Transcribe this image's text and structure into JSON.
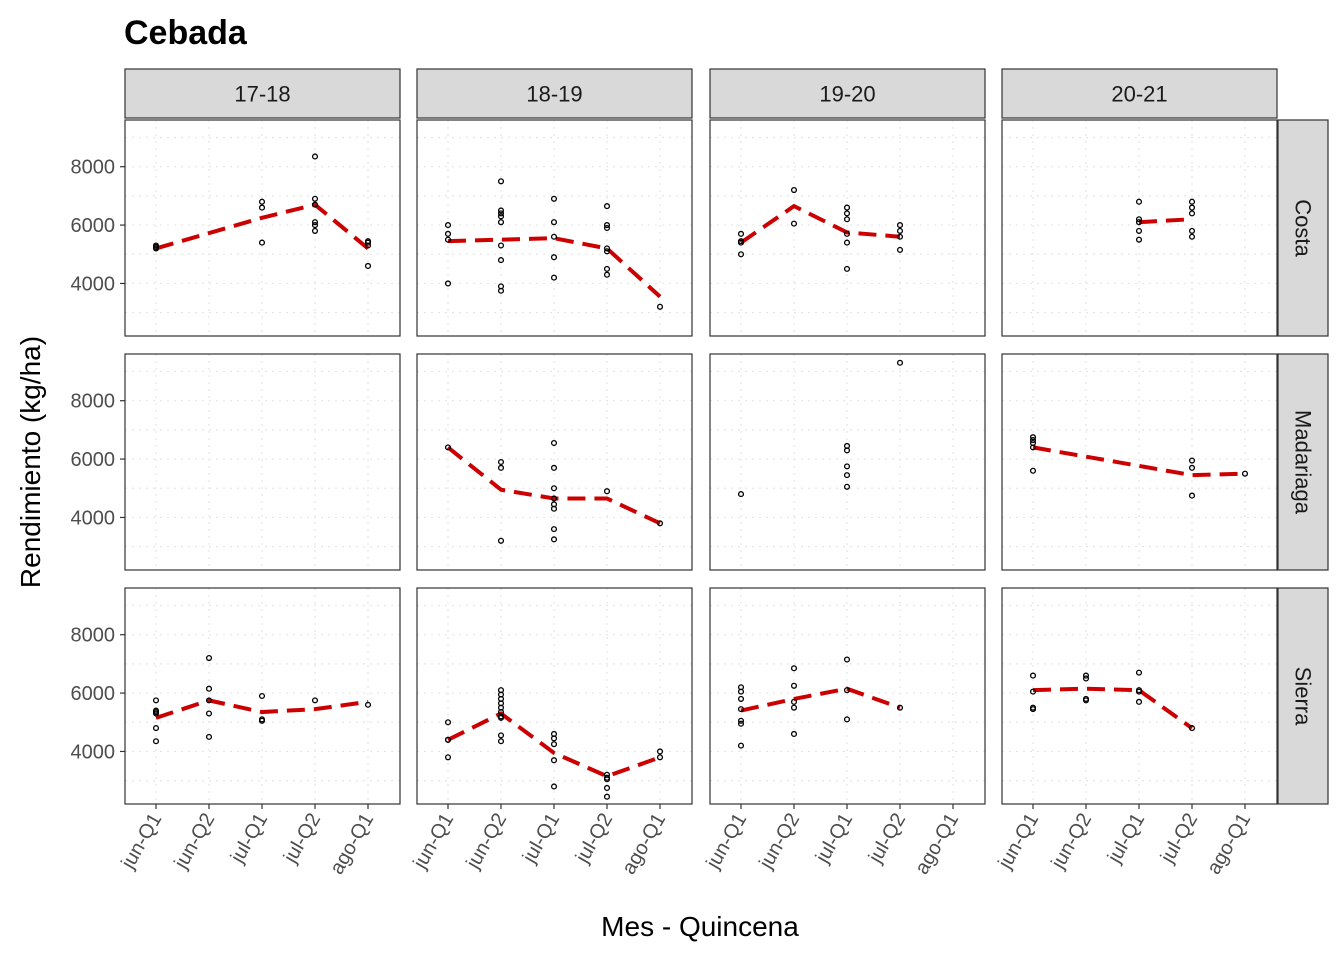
{
  "chart_data": {
    "type": "scatter",
    "title": "Cebada",
    "xlabel": "Mes - Quincena",
    "ylabel": "Rendimiento (kg/ha)",
    "x_categories": [
      "jun-Q1",
      "jun-Q2",
      "jul-Q1",
      "jul-Q2",
      "ago-Q1"
    ],
    "y_ticks": [
      4000,
      6000,
      8000
    ],
    "ylim": [
      2200,
      9600
    ],
    "grid": "dotted",
    "columns": [
      "17-18",
      "18-19",
      "19-20",
      "20-21"
    ],
    "rows": [
      "Costa",
      "Madariaga",
      "Sierra"
    ],
    "mean_line_color": "#cc0000",
    "point_color": "#000000",
    "panels": [
      {
        "row": "Costa",
        "col": "17-18",
        "points": [
          [
            0,
            5200
          ],
          [
            0,
            5250
          ],
          [
            0,
            5300
          ],
          [
            2,
            5400
          ],
          [
            2,
            6600
          ],
          [
            2,
            6800
          ],
          [
            3,
            5800
          ],
          [
            3,
            6000
          ],
          [
            3,
            6100
          ],
          [
            3,
            6700
          ],
          [
            3,
            6900
          ],
          [
            3,
            8350
          ],
          [
            4,
            4600
          ],
          [
            4,
            5300
          ],
          [
            4,
            5400
          ],
          [
            4,
            5450
          ]
        ],
        "line": [
          [
            0,
            5200
          ],
          [
            2,
            6250
          ],
          [
            3,
            6700
          ],
          [
            4,
            5200
          ]
        ]
      },
      {
        "row": "Costa",
        "col": "18-19",
        "points": [
          [
            0,
            4000
          ],
          [
            0,
            5500
          ],
          [
            0,
            5700
          ],
          [
            0,
            6000
          ],
          [
            1,
            3750
          ],
          [
            1,
            3900
          ],
          [
            1,
            4800
          ],
          [
            1,
            5300
          ],
          [
            1,
            6100
          ],
          [
            1,
            6300
          ],
          [
            1,
            6400
          ],
          [
            1,
            6500
          ],
          [
            1,
            7500
          ],
          [
            2,
            4200
          ],
          [
            2,
            4900
          ],
          [
            2,
            5600
          ],
          [
            2,
            6100
          ],
          [
            2,
            6900
          ],
          [
            3,
            4300
          ],
          [
            3,
            4500
          ],
          [
            3,
            5100
          ],
          [
            3,
            5200
          ],
          [
            3,
            5900
          ],
          [
            3,
            6000
          ],
          [
            3,
            6650
          ],
          [
            4,
            3200
          ]
        ],
        "line": [
          [
            0,
            5450
          ],
          [
            1,
            5500
          ],
          [
            2,
            5550
          ],
          [
            3,
            5200
          ],
          [
            4,
            3550
          ]
        ]
      },
      {
        "row": "Costa",
        "col": "19-20",
        "points": [
          [
            0,
            5000
          ],
          [
            0,
            5400
          ],
          [
            0,
            5450
          ],
          [
            0,
            5700
          ],
          [
            1,
            6050
          ],
          [
            1,
            7200
          ],
          [
            2,
            4500
          ],
          [
            2,
            5400
          ],
          [
            2,
            5700
          ],
          [
            2,
            6200
          ],
          [
            2,
            6400
          ],
          [
            2,
            6600
          ],
          [
            3,
            5150
          ],
          [
            3,
            5600
          ],
          [
            3,
            5800
          ],
          [
            3,
            6000
          ]
        ],
        "line": [
          [
            0,
            5400
          ],
          [
            1,
            6650
          ],
          [
            2,
            5750
          ],
          [
            3,
            5600
          ]
        ]
      },
      {
        "row": "Costa",
        "col": "20-21",
        "points": [
          [
            2,
            5500
          ],
          [
            2,
            5800
          ],
          [
            2,
            6100
          ],
          [
            2,
            6200
          ],
          [
            2,
            6800
          ],
          [
            3,
            5600
          ],
          [
            3,
            5800
          ],
          [
            3,
            6400
          ],
          [
            3,
            6600
          ],
          [
            3,
            6800
          ]
        ],
        "line": [
          [
            2,
            6100
          ],
          [
            3,
            6200
          ]
        ]
      },
      {
        "row": "Madariaga",
        "col": "17-18",
        "points": [],
        "line": []
      },
      {
        "row": "Madariaga",
        "col": "18-19",
        "points": [
          [
            0,
            6400
          ],
          [
            1,
            3200
          ],
          [
            1,
            5700
          ],
          [
            1,
            5900
          ],
          [
            2,
            3250
          ],
          [
            2,
            3600
          ],
          [
            2,
            4300
          ],
          [
            2,
            4450
          ],
          [
            2,
            4650
          ],
          [
            2,
            5000
          ],
          [
            2,
            5700
          ],
          [
            2,
            6550
          ],
          [
            3,
            4900
          ],
          [
            4,
            3800
          ]
        ],
        "line": [
          [
            0,
            6400
          ],
          [
            1,
            4950
          ],
          [
            2,
            4650
          ],
          [
            3,
            4650
          ],
          [
            4,
            3800
          ]
        ]
      },
      {
        "row": "Madariaga",
        "col": "19-20",
        "points": [
          [
            0,
            4800
          ],
          [
            2,
            5050
          ],
          [
            2,
            5450
          ],
          [
            2,
            5750
          ],
          [
            2,
            6300
          ],
          [
            2,
            6450
          ],
          [
            3,
            9300
          ]
        ],
        "line": []
      },
      {
        "row": "Madariaga",
        "col": "20-21",
        "points": [
          [
            0,
            5600
          ],
          [
            0,
            6400
          ],
          [
            0,
            6550
          ],
          [
            0,
            6650
          ],
          [
            0,
            6750
          ],
          [
            3,
            4750
          ],
          [
            3,
            5700
          ],
          [
            3,
            5950
          ],
          [
            4,
            5500
          ]
        ],
        "line": [
          [
            0,
            6400
          ],
          [
            3,
            5450
          ],
          [
            4,
            5500
          ]
        ]
      },
      {
        "row": "Sierra",
        "col": "17-18",
        "points": [
          [
            0,
            4350
          ],
          [
            0,
            4800
          ],
          [
            0,
            5300
          ],
          [
            0,
            5350
          ],
          [
            0,
            5400
          ],
          [
            0,
            5750
          ],
          [
            1,
            4500
          ],
          [
            1,
            5300
          ],
          [
            1,
            5750
          ],
          [
            1,
            6150
          ],
          [
            1,
            7200
          ],
          [
            2,
            5050
          ],
          [
            2,
            5100
          ],
          [
            2,
            5900
          ],
          [
            3,
            5750
          ],
          [
            4,
            5600
          ]
        ],
        "line": [
          [
            0,
            5150
          ],
          [
            1,
            5750
          ],
          [
            2,
            5350
          ],
          [
            3,
            5450
          ],
          [
            4,
            5700
          ]
        ]
      },
      {
        "row": "Sierra",
        "col": "18-19",
        "points": [
          [
            0,
            3800
          ],
          [
            0,
            4400
          ],
          [
            0,
            4400
          ],
          [
            0,
            5000
          ],
          [
            1,
            4350
          ],
          [
            1,
            4550
          ],
          [
            1,
            5150
          ],
          [
            1,
            5200
          ],
          [
            1,
            5350
          ],
          [
            1,
            5500
          ],
          [
            1,
            5650
          ],
          [
            1,
            5800
          ],
          [
            1,
            5950
          ],
          [
            1,
            6100
          ],
          [
            2,
            2800
          ],
          [
            2,
            3700
          ],
          [
            2,
            4250
          ],
          [
            2,
            4450
          ],
          [
            2,
            4600
          ],
          [
            3,
            2450
          ],
          [
            3,
            2750
          ],
          [
            3,
            3050
          ],
          [
            3,
            3100
          ],
          [
            3,
            3200
          ],
          [
            4,
            3800
          ],
          [
            4,
            4000
          ]
        ],
        "line": [
          [
            0,
            4400
          ],
          [
            1,
            5300
          ],
          [
            2,
            3950
          ],
          [
            3,
            3150
          ],
          [
            4,
            3800
          ]
        ]
      },
      {
        "row": "Sierra",
        "col": "19-20",
        "points": [
          [
            0,
            4200
          ],
          [
            0,
            4950
          ],
          [
            0,
            5050
          ],
          [
            0,
            5450
          ],
          [
            0,
            5800
          ],
          [
            0,
            6050
          ],
          [
            0,
            6200
          ],
          [
            1,
            4600
          ],
          [
            1,
            5500
          ],
          [
            1,
            5700
          ],
          [
            1,
            6250
          ],
          [
            1,
            6850
          ],
          [
            2,
            5100
          ],
          [
            2,
            6100
          ],
          [
            2,
            7150
          ],
          [
            3,
            5500
          ]
        ],
        "line": [
          [
            0,
            5400
          ],
          [
            1,
            5800
          ],
          [
            2,
            6150
          ],
          [
            3,
            5500
          ]
        ]
      },
      {
        "row": "Sierra",
        "col": "20-21",
        "points": [
          [
            0,
            5450
          ],
          [
            0,
            5500
          ],
          [
            0,
            6050
          ],
          [
            0,
            6600
          ],
          [
            1,
            5750
          ],
          [
            1,
            5800
          ],
          [
            1,
            6500
          ],
          [
            1,
            6600
          ],
          [
            2,
            5700
          ],
          [
            2,
            6050
          ],
          [
            2,
            6100
          ],
          [
            2,
            6700
          ],
          [
            3,
            4800
          ]
        ],
        "line": [
          [
            0,
            6100
          ],
          [
            1,
            6150
          ],
          [
            2,
            6100
          ],
          [
            3,
            4800
          ]
        ]
      }
    ]
  }
}
